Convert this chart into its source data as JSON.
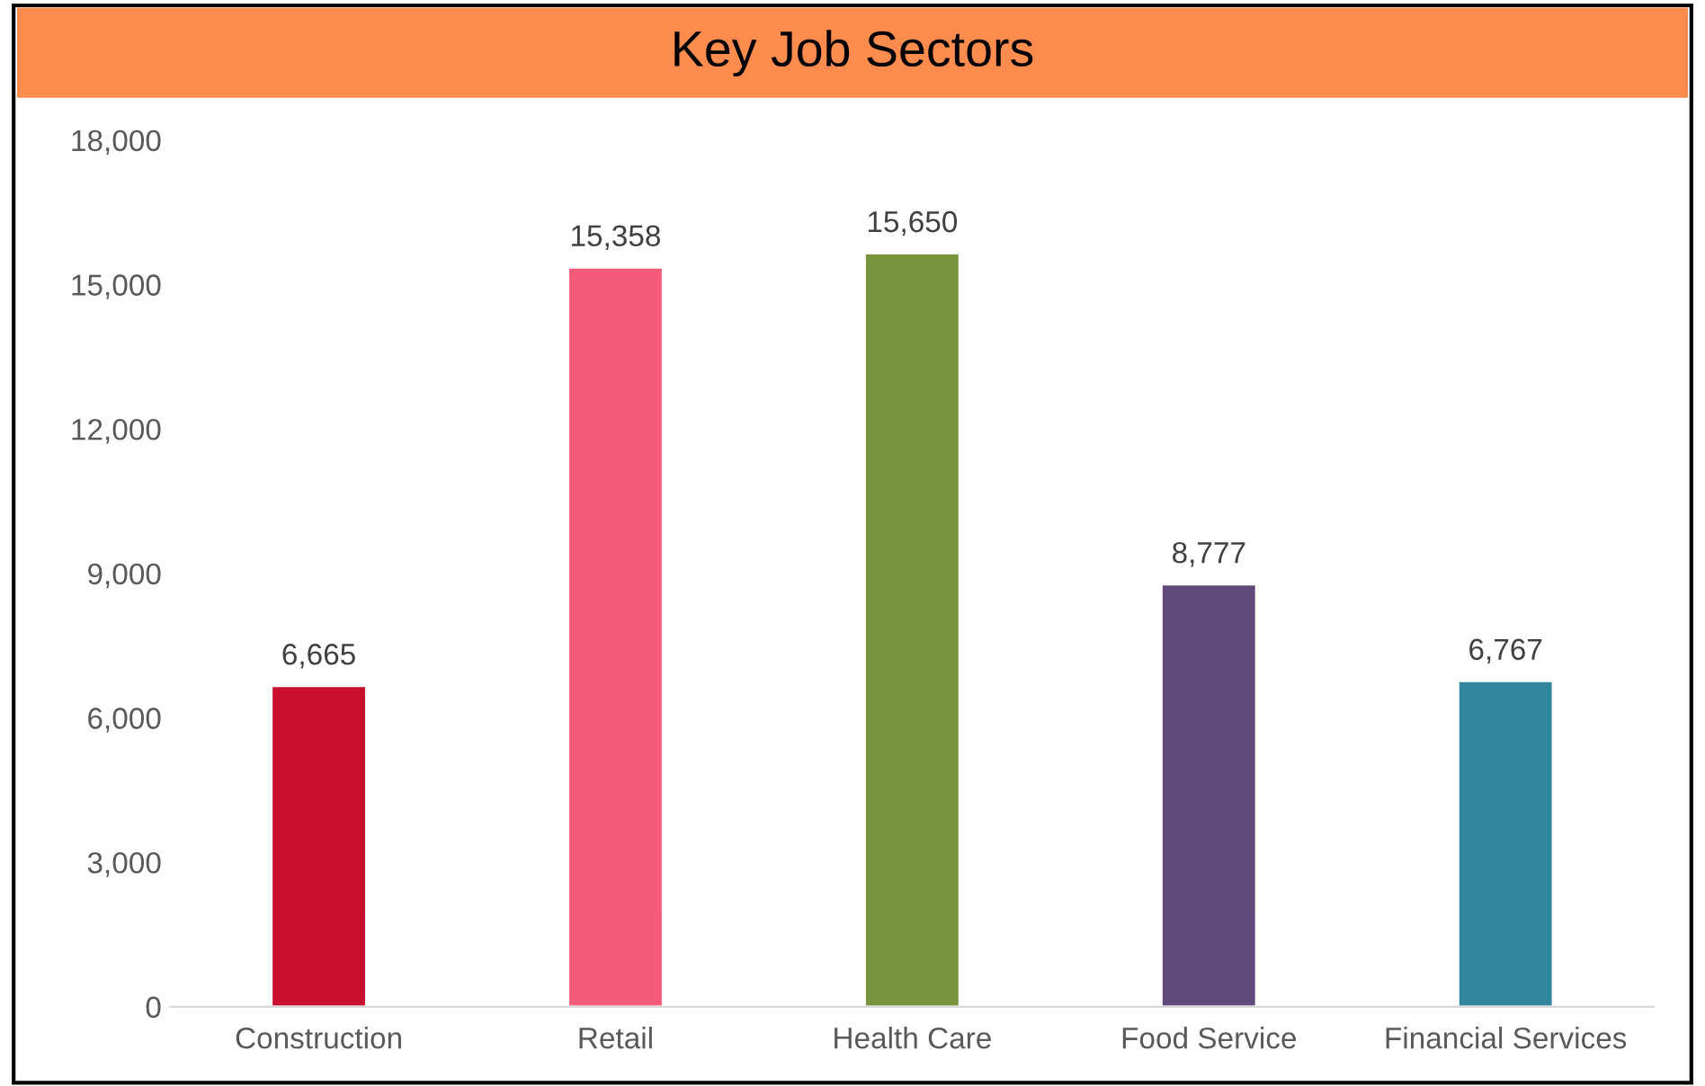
{
  "chart_data": {
    "type": "bar",
    "title": "Key Job Sectors",
    "categories": [
      "Construction",
      "Retail",
      "Health Care",
      "Food Service",
      "Financial Services"
    ],
    "values": [
      6665,
      15358,
      15650,
      8777,
      6767
    ],
    "colors": [
      "#c8102e",
      "#f45b7a",
      "#77933c",
      "#604a7b",
      "#31859c"
    ],
    "ylim": [
      0,
      18000
    ],
    "yticks": [
      {
        "value": 0,
        "label": "0"
      },
      {
        "value": 3000,
        "label": "3,000"
      },
      {
        "value": 6000,
        "label": "6,000"
      },
      {
        "value": 9000,
        "label": "9,000"
      },
      {
        "value": 12000,
        "label": "12,000"
      },
      {
        "value": 15000,
        "label": "15,000"
      },
      {
        "value": 18000,
        "label": "18,000"
      }
    ],
    "value_labels": [
      "6,665",
      "15,358",
      "15,650",
      "8,777",
      "6,767"
    ],
    "grid": false,
    "legend": false
  }
}
